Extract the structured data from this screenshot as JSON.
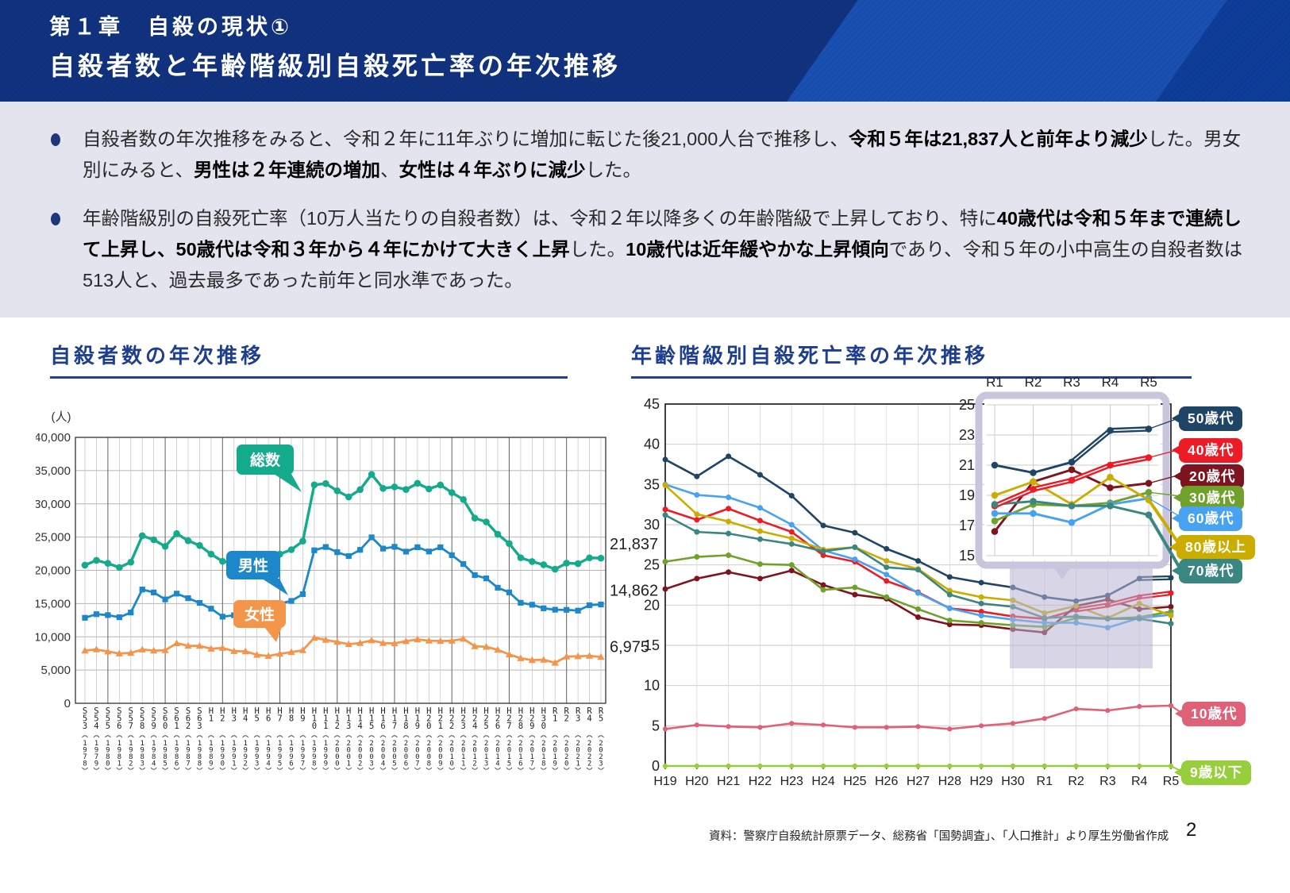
{
  "header": {
    "chapter": "第１章　自殺の現状①",
    "title": "自殺者数と年齢階級別自殺死亡率の年次推移"
  },
  "summary": {
    "bullets": [
      {
        "segments": [
          {
            "t": "自殺者数の年次推移をみると、令和２年に11年ぶりに増加に転じた後21,000人台で推移し、",
            "b": false
          },
          {
            "t": "令和５年は21,837人と前年より減少",
            "b": true
          },
          {
            "t": "した。男女別にみると、",
            "b": false
          },
          {
            "t": "男性は２年連続の増加",
            "b": true
          },
          {
            "t": "、",
            "b": false
          },
          {
            "t": "女性は４年ぶりに減少",
            "b": true
          },
          {
            "t": "した。",
            "b": false
          }
        ]
      },
      {
        "segments": [
          {
            "t": "年齢階級別の自殺死亡率（10万人当たりの自殺者数）は、令和２年以降多くの年齢階級で上昇しており、特に",
            "b": false
          },
          {
            "t": "40歳代は令和５年まで連続して上昇し、50歳代は令和３年から４年にかけて大きく上昇",
            "b": true
          },
          {
            "t": "した。",
            "b": false
          },
          {
            "t": "10歳代は近年緩やかな上昇傾向",
            "b": true
          },
          {
            "t": "であり、令和５年の小中高生の自殺者数は513人と、過去最多であった前年と同水準であった。",
            "b": false
          }
        ]
      }
    ]
  },
  "left_chart": {
    "heading": "自殺者数の年次推移"
  },
  "right_chart": {
    "heading": "年齢階級別自殺死亡率の年次推移"
  },
  "footer": {
    "source": "資料：警察庁自殺統計原票データ、総務省「国勢調査」、「人口推計」より厚生労働省作成",
    "page": "2"
  },
  "chart_data": [
    {
      "type": "line",
      "title": "自殺者数の年次推移",
      "ylabel": "(人)",
      "ylim": [
        0,
        40000
      ],
      "ytick_step": 5000,
      "grid": true,
      "x_labels": [
        "S53",
        "S54",
        "S55",
        "S56",
        "S57",
        "S58",
        "S59",
        "S60",
        "S61",
        "S62",
        "S63",
        "H1",
        "H2",
        "H3",
        "H4",
        "H5",
        "H6",
        "H7",
        "H8",
        "H9",
        "H10",
        "H11",
        "H12",
        "H13",
        "H14",
        "H15",
        "H16",
        "H17",
        "H18",
        "H19",
        "H20",
        "H21",
        "H22",
        "H23",
        "H24",
        "H25",
        "H26",
        "H27",
        "H28",
        "H29",
        "H30",
        "R1",
        "R2",
        "R3",
        "R4",
        "R5"
      ],
      "x_years": [
        "1978",
        "1979",
        "1980",
        "1981",
        "1982",
        "1983",
        "1984",
        "1985",
        "1986",
        "1987",
        "1988",
        "1989",
        "1990",
        "1991",
        "1992",
        "1993",
        "1994",
        "1995",
        "1996",
        "1997",
        "1998",
        "1999",
        "2000",
        "2001",
        "2002",
        "2003",
        "2004",
        "2005",
        "2006",
        "2007",
        "2008",
        "2009",
        "2010",
        "2011",
        "2012",
        "2013",
        "2014",
        "2015",
        "2016",
        "2017",
        "2018",
        "2019",
        "2020",
        "2021",
        "2022",
        "2023"
      ],
      "series": [
        {
          "name": "総数",
          "color": "#14AB8C",
          "marker": "circle",
          "values": [
            20788,
            21503,
            21048,
            20434,
            21228,
            25202,
            24596,
            23599,
            25524,
            24460,
            23742,
            22436,
            21346,
            21084,
            22104,
            21851,
            21679,
            22445,
            23104,
            24391,
            32863,
            33048,
            31957,
            31042,
            32143,
            34427,
            32325,
            32552,
            32155,
            33093,
            32249,
            32845,
            31690,
            30651,
            27858,
            27283,
            25427,
            24025,
            21897,
            21321,
            20840,
            20169,
            21081,
            21007,
            21881,
            21837
          ]
        },
        {
          "name": "男性",
          "color": "#1C87C9",
          "marker": "square",
          "values": [
            12859,
            13406,
            13267,
            12942,
            13654,
            17116,
            16673,
            15624,
            16499,
            15809,
            15100,
            14231,
            13026,
            13242,
            14296,
            14563,
            14560,
            15006,
            15400,
            16416,
            23013,
            23512,
            22727,
            22144,
            23080,
            24963,
            23272,
            23540,
            22813,
            23478,
            22831,
            23472,
            22283,
            20955,
            19273,
            18787,
            17386,
            16681,
            15121,
            14826,
            14290,
            14078,
            14055,
            13939,
            14746,
            14862
          ]
        },
        {
          "name": "女性",
          "color": "#F4954C",
          "marker": "triangle",
          "values": [
            7929,
            8097,
            7781,
            7492,
            7574,
            8086,
            7923,
            7975,
            9025,
            8651,
            8642,
            8205,
            8320,
            7842,
            7808,
            7288,
            7119,
            7439,
            7704,
            7975,
            9850,
            9536,
            9230,
            8898,
            9063,
            9464,
            9053,
            9012,
            9342,
            9615,
            9418,
            9373,
            9407,
            9696,
            8585,
            8496,
            8041,
            7344,
            6776,
            6495,
            6550,
            6091,
            7026,
            7068,
            7135,
            6975
          ]
        }
      ],
      "end_labels": [
        "21,837",
        "14,862",
        "6,975"
      ]
    },
    {
      "type": "line",
      "title": "年齢階級別自殺死亡率の年次推移",
      "ylim": [
        0,
        45
      ],
      "ytick_step": 5,
      "grid": true,
      "legend_position": "right",
      "x_labels": [
        "H19",
        "H20",
        "H21",
        "H22",
        "H23",
        "H24",
        "H25",
        "H26",
        "H27",
        "H28",
        "H29",
        "H30",
        "R1",
        "R2",
        "R3",
        "R4",
        "R5"
      ],
      "series": [
        {
          "name": "50歳代",
          "color": "#1F4566",
          "values": [
            38.1,
            36.0,
            38.5,
            36.2,
            33.6,
            29.9,
            29.0,
            27.0,
            25.5,
            23.5,
            22.8,
            22.2,
            21.0,
            20.5,
            21.2,
            23.3,
            23.4
          ]
        },
        {
          "name": "40歳代",
          "color": "#EC1B26",
          "values": [
            31.9,
            30.6,
            32.0,
            30.5,
            29.1,
            26.2,
            25.4,
            23.0,
            21.6,
            19.6,
            19.2,
            18.6,
            18.3,
            19.4,
            20.0,
            21.0,
            21.5
          ]
        },
        {
          "name": "20歳代",
          "color": "#7E141F",
          "values": [
            22.0,
            23.3,
            24.1,
            23.3,
            24.3,
            22.5,
            21.3,
            20.8,
            18.5,
            17.6,
            17.5,
            17.0,
            16.6,
            19.9,
            20.7,
            19.5,
            19.8
          ]
        },
        {
          "name": "30歳代",
          "color": "#70A22B",
          "values": [
            25.4,
            26.0,
            26.2,
            25.1,
            25.0,
            21.9,
            22.2,
            21.0,
            19.5,
            18.1,
            17.8,
            17.5,
            17.3,
            18.4,
            18.3,
            18.5,
            19.2
          ]
        },
        {
          "name": "60歳代",
          "color": "#47A3F2",
          "values": [
            35.0,
            33.7,
            33.4,
            32.1,
            30.0,
            26.8,
            25.7,
            23.8,
            21.5,
            19.6,
            18.7,
            18.2,
            17.8,
            17.8,
            17.2,
            18.4,
            18.8
          ]
        },
        {
          "name": "80歳以上",
          "color": "#CBAD00",
          "values": [
            34.9,
            31.3,
            30.4,
            29.2,
            28.3,
            26.9,
            27.2,
            25.5,
            24.5,
            21.8,
            21.0,
            20.6,
            19.0,
            19.9,
            18.4,
            20.2,
            18.7
          ]
        },
        {
          "name": "70歳代",
          "color": "#3A8680",
          "values": [
            31.2,
            29.1,
            28.9,
            28.2,
            27.6,
            26.7,
            27.2,
            24.7,
            24.4,
            21.3,
            20.2,
            19.8,
            18.4,
            18.6,
            18.3,
            18.3,
            17.7
          ]
        },
        {
          "name": "10歳代",
          "color": "#E06078",
          "values": [
            4.6,
            5.1,
            4.9,
            4.8,
            5.3,
            5.1,
            4.8,
            4.8,
            4.9,
            4.6,
            5.0,
            5.3,
            5.9,
            7.1,
            6.9,
            7.4,
            7.5
          ]
        },
        {
          "name": "9歳以下",
          "color": "#97CE3C",
          "values": [
            0,
            0,
            0,
            0,
            0,
            0,
            0,
            0,
            0,
            0,
            0,
            0,
            0,
            0,
            0,
            0,
            0
          ]
        }
      ],
      "inset": {
        "x_labels": [
          "R1",
          "R2",
          "R3",
          "R4",
          "R5"
        ],
        "ylim": [
          15,
          25
        ],
        "ytick_step": 2,
        "series_count": 7
      },
      "legend": [
        {
          "label": "50歳代",
          "color": "#1F4566"
        },
        {
          "label": "40歳代",
          "color": "#EC1B26"
        },
        {
          "label": "20歳代",
          "color": "#7E141F"
        },
        {
          "label": "30歳代",
          "color": "#70A22B"
        },
        {
          "label": "60歳代",
          "color": "#47A3F2"
        },
        {
          "label": "80歳以上",
          "color": "#CBAD00"
        },
        {
          "label": "70歳代",
          "color": "#3A8680"
        },
        {
          "label": "10歳代",
          "color": "#E06078"
        },
        {
          "label": "9歳以下",
          "color": "#97CE3C"
        }
      ]
    }
  ]
}
